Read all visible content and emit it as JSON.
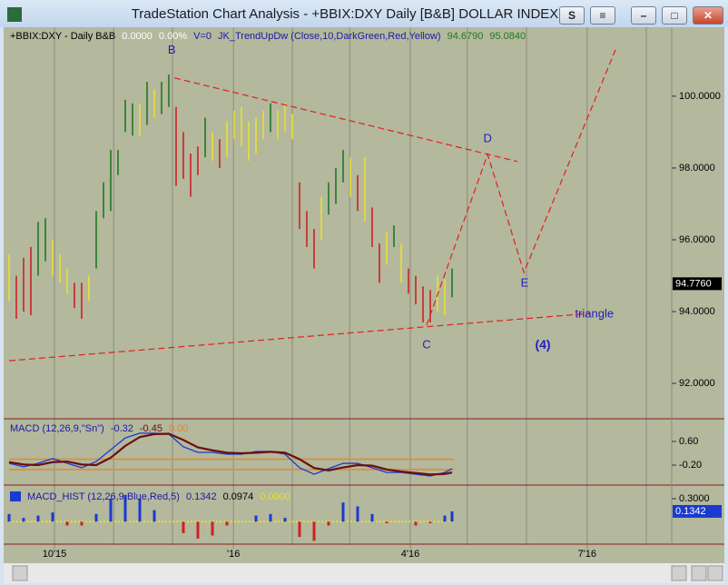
{
  "window": {
    "title": "TradeStation Chart Analysis - +BBIX:DXY Daily [B&B] DOLLAR INDEX",
    "buttons": [
      "S"
    ]
  },
  "chart_data": [
    {
      "type": "ohlc",
      "header": [
        {
          "text": "+BBIX:DXY - Daily  B&B",
          "color": "#000000"
        },
        {
          "text": "0.0000",
          "color": "#ffffff"
        },
        {
          "text": "0.00%",
          "color": "#ffffff"
        },
        {
          "text": "V=0",
          "color": "#1a1aa8"
        },
        {
          "text": "JK_TrendUpDw (Close,10,DarkGreen,Red,Yellow)",
          "color": "#1a1aa8"
        },
        {
          "text": "94.6790",
          "color": "#1f7a1f"
        },
        {
          "text": "95.0840",
          "color": "#1f7a1f"
        }
      ],
      "x": [
        0,
        1,
        2,
        3,
        4,
        5,
        6,
        7,
        8,
        9,
        10,
        11,
        12,
        13,
        14,
        15,
        16,
        17,
        18,
        19,
        20,
        21,
        22,
        23,
        24,
        25,
        26,
        27,
        28,
        29,
        30,
        31,
        32,
        33,
        34,
        35,
        36,
        37,
        38,
        39,
        40,
        41,
        42,
        43,
        44,
        45,
        46,
        47,
        48,
        49,
        50,
        51,
        52,
        53,
        54,
        55,
        56,
        57,
        58,
        59,
        60,
        61
      ],
      "high": [
        95.6,
        95,
        95.5,
        95.8,
        96.5,
        96.6,
        96,
        95.6,
        95.2,
        94.8,
        94.8,
        95,
        96.8,
        97.6,
        98.5,
        98.5,
        99.9,
        99.8,
        99.8,
        100.4,
        100.2,
        100.4,
        100.6,
        99.7,
        99,
        98.4,
        98.6,
        99.4,
        99,
        98.8,
        99.3,
        99.6,
        99.7,
        99.3,
        99.4,
        99.6,
        99.8,
        99.6,
        99.8,
        99.5,
        97.6,
        96.8,
        96.3,
        97.2,
        97.6,
        98,
        98.5,
        98.3,
        97.8,
        98.3,
        96.9,
        95.9,
        96.2,
        96.4,
        95.9,
        95.2,
        95,
        94.7,
        94.6,
        95,
        94.9,
        95.2
      ],
      "low": [
        94.3,
        93.8,
        94,
        93.9,
        95,
        95.4,
        95,
        94.8,
        94.5,
        94.1,
        93.8,
        94.3,
        95.2,
        96.6,
        96.8,
        97.8,
        99,
        98.9,
        98.9,
        99.2,
        99.4,
        99.5,
        99.7,
        97.5,
        97.7,
        97.2,
        97.8,
        98.3,
        98.2,
        98,
        98.3,
        98.8,
        98.6,
        98.2,
        98.4,
        98.8,
        99,
        98.8,
        99,
        98.8,
        96.3,
        95.8,
        95.2,
        96,
        96.7,
        97,
        97.6,
        97.2,
        96.8,
        96.5,
        95.8,
        94.8,
        95.3,
        95.8,
        94.8,
        94.5,
        94.2,
        93.7,
        93.7,
        94,
        93.9,
        94.4
      ],
      "trend": [
        "flat",
        "down",
        "down",
        "down",
        "up",
        "up",
        "flat",
        "flat",
        "flat",
        "down",
        "down",
        "flat",
        "up",
        "up",
        "up",
        "up",
        "up",
        "up",
        "flat",
        "up",
        "flat",
        "up",
        "up",
        "down",
        "down",
        "down",
        "down",
        "up",
        "flat",
        "down",
        "flat",
        "flat",
        "flat",
        "flat",
        "flat",
        "flat",
        "up",
        "flat",
        "flat",
        "flat",
        "down",
        "down",
        "down",
        "flat",
        "up",
        "up",
        "up",
        "flat",
        "down",
        "flat",
        "down",
        "down",
        "flat",
        "up",
        "flat",
        "down",
        "down",
        "down",
        "down",
        "flat",
        "flat",
        "up"
      ],
      "trend_colors": {
        "up": "#1f7a1f",
        "down": "#cc2222",
        "flat": "#e8e030"
      },
      "xlim": [
        0,
        91.25
      ],
      "xticks": [
        {
          "value": 6.25,
          "label": "10'15"
        },
        {
          "value": 30.9,
          "label": "'16"
        },
        {
          "value": 55.25,
          "label": "4'16"
        },
        {
          "value": 79.6,
          "label": "7'16"
        }
      ],
      "xgrid": [
        14.4,
        22.5,
        39,
        46.9,
        63.1,
        71.25,
        87.75
      ],
      "ylim": [
        91.04,
        101.92
      ],
      "yticks": [
        {
          "value": 92,
          "label": "92.0000"
        },
        {
          "value": 94,
          "label": "94.0000"
        },
        {
          "value": 96,
          "label": "96.0000"
        },
        {
          "value": 98,
          "label": "98.0000"
        },
        {
          "value": 100,
          "label": "100.0000"
        }
      ],
      "last": {
        "value": 94.776,
        "label": "94.7760"
      },
      "lines": [
        {
          "color": "#e02020",
          "x": [
            22.75,
            70
          ],
          "y": [
            100.51,
            98.18
          ]
        },
        {
          "color": "#e02020",
          "x": [
            0,
            80
          ],
          "y": [
            92.63,
            93.95
          ]
        },
        {
          "color": "#e02020",
          "x": [
            57.5,
            65.9,
            70.9,
            83.5
          ],
          "y": [
            93.62,
            98.38,
            95.09,
            101.29
          ]
        }
      ],
      "annotations": [
        {
          "text": "B",
          "x": 22.4,
          "y": 101.27
        },
        {
          "text": "C",
          "x": 57.5,
          "y": 93.06
        },
        {
          "text": "D",
          "x": 65.9,
          "y": 98.81
        },
        {
          "text": "E",
          "x": 71,
          "y": 94.78
        },
        {
          "text": "(4)",
          "x": 73.5,
          "y": 93.06
        },
        {
          "text": "triangle",
          "x": 80.6,
          "y": 93.92
        }
      ],
      "annotation_color": "#2020c0"
    },
    {
      "type": "line",
      "header": [
        {
          "text": "MACD (12,26,9,\"Sn\")",
          "color": "#1a1aa8"
        },
        {
          "text": "-0.32",
          "color": "#1a1aa8"
        },
        {
          "text": "-0.45",
          "color": "#6b0f0f"
        },
        {
          "text": "0.00",
          "color": "#e08a2a"
        }
      ],
      "x": [
        0,
        2,
        4,
        6,
        8,
        10,
        12,
        14,
        16,
        18,
        20,
        22,
        24,
        26,
        28,
        30,
        32,
        34,
        36,
        38,
        40,
        42,
        44,
        46,
        48,
        50,
        52,
        54,
        56,
        58,
        60,
        61
      ],
      "series": [
        {
          "color": "#1a3ad0",
          "values": [
            -0.14,
            -0.26,
            -0.14,
            0.02,
            -0.14,
            -0.29,
            -0.08,
            0.32,
            0.72,
            0.88,
            0.88,
            0.85,
            0.42,
            0.23,
            0.23,
            0.17,
            0.17,
            0.26,
            0.26,
            0.17,
            -0.29,
            -0.51,
            -0.32,
            -0.14,
            -0.14,
            -0.29,
            -0.45,
            -0.45,
            -0.51,
            -0.57,
            -0.45,
            -0.32
          ]
        },
        {
          "color": "#6b0f0f",
          "values": [
            -0.1,
            -0.18,
            -0.2,
            -0.1,
            -0.08,
            -0.18,
            -0.2,
            0.05,
            0.45,
            0.75,
            0.85,
            0.86,
            0.65,
            0.4,
            0.3,
            0.22,
            0.2,
            0.22,
            0.25,
            0.22,
            0.0,
            -0.3,
            -0.38,
            -0.28,
            -0.2,
            -0.22,
            -0.35,
            -0.42,
            -0.47,
            -0.52,
            -0.5,
            -0.45
          ]
        }
      ],
      "levels": [
        0.0,
        -0.35
      ],
      "level_color": "#e08a2a",
      "ylim": [
        -0.846,
        1.338
      ],
      "yticks": [
        {
          "value": 0.6,
          "label": "0.60"
        },
        {
          "value": -0.2,
          "label": "-0.20"
        }
      ]
    },
    {
      "type": "histogram",
      "header": [
        {
          "text": "MACD_HIST (12,26,9,Blue,Red,5)",
          "color": "#1a1aa8"
        },
        {
          "text": "0.1342",
          "color": "#1a1aa8"
        },
        {
          "text": "0.0974",
          "color": "#000000"
        },
        {
          "text": "0.0000",
          "color": "#e8e030"
        }
      ],
      "x": [
        0,
        2,
        4,
        6,
        8,
        10,
        12,
        14,
        16,
        18,
        20,
        22,
        24,
        26,
        28,
        30,
        32,
        34,
        36,
        38,
        40,
        42,
        44,
        46,
        48,
        50,
        52,
        54,
        56,
        58,
        60,
        61
      ],
      "values": [
        0.1,
        0.05,
        0.08,
        0.12,
        -0.05,
        -0.05,
        0.1,
        0.3,
        0.35,
        0.3,
        0.15,
        0.0,
        -0.15,
        -0.22,
        -0.18,
        -0.05,
        0.0,
        0.08,
        0.1,
        0.05,
        -0.2,
        -0.25,
        -0.05,
        0.25,
        0.2,
        0.1,
        -0.02,
        0.0,
        -0.05,
        -0.02,
        0.08,
        0.1342
      ],
      "pos_color": "#1a3ad0",
      "neg_color": "#cc2222",
      "ylim": [
        -0.281,
        0.442
      ],
      "yticks": [
        {
          "value": 0.3,
          "label": "0.3000"
        }
      ],
      "last": {
        "value": 0.1342,
        "label": "0.1342"
      }
    }
  ]
}
